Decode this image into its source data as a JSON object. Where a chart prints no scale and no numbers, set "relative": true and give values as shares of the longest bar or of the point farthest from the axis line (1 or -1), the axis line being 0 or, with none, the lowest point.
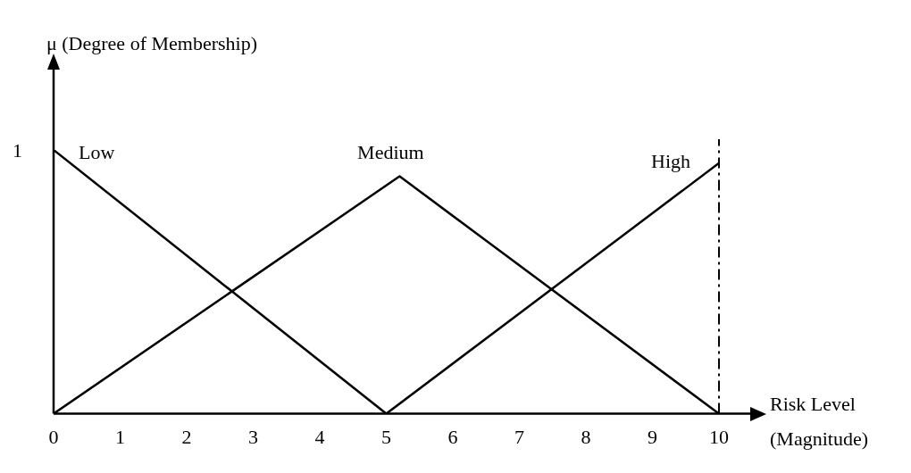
{
  "chart_data": {
    "type": "line",
    "ylabel": "μ (Degree of Membership)",
    "xlabel": "Risk Level (Magnitude)",
    "relative": true,
    "xlim": [
      0,
      10
    ],
    "xticks": [
      0,
      1,
      2,
      3,
      4,
      5,
      6,
      7,
      8,
      9,
      10
    ],
    "grid": false,
    "legend": false,
    "marker": "none",
    "line_style": "solid",
    "series": [
      {
        "name": "Low",
        "color": "#000000",
        "x": [
          0,
          5
        ],
        "values": [
          1,
          0
        ]
      },
      {
        "name": "Medium",
        "color": "#000000",
        "x": [
          0,
          5.2,
          10
        ],
        "values": [
          0,
          0.9,
          0
        ]
      },
      {
        "name": "High",
        "color": "#000000",
        "x": [
          5,
          10
        ],
        "values": [
          0,
          0.95
        ]
      }
    ],
    "ref_lines": [
      {
        "axis": "x",
        "value": 10,
        "line_style": "dashed",
        "color": "#000000"
      }
    ],
    "annotations": [
      {
        "text": "1",
        "x": 0,
        "y": 1
      }
    ]
  }
}
